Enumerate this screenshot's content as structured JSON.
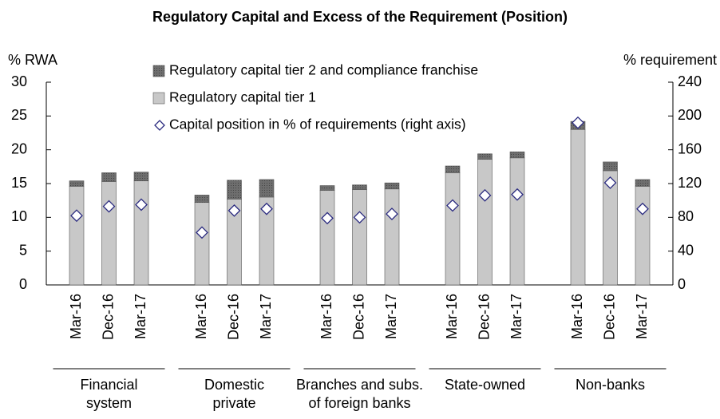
{
  "chart_data": {
    "type": "bar",
    "title": "Regulatory Capital and Excess of the Requirement (Position)",
    "y_label": "% RWA",
    "y2_label": "% requirement",
    "categories": [
      "Mar-16",
      "Dec-16",
      "Mar-17",
      "Mar-16",
      "Dec-16",
      "Mar-17",
      "Mar-16",
      "Dec-16",
      "Mar-17",
      "Mar-16",
      "Dec-16",
      "Mar-17",
      "Mar-16",
      "Dec-16",
      "Mar-17"
    ],
    "group_labels": [
      [
        "Financial",
        "system"
      ],
      [
        "Domestic",
        "private"
      ],
      [
        "Branches and subs.",
        "of foreign banks"
      ],
      [
        "State-owned"
      ],
      [
        "Non-banks"
      ]
    ],
    "series": [
      {
        "name": "Regulatory capital tier 1",
        "color": "#c8c8c8",
        "stack": true,
        "values": [
          14.6,
          15.3,
          15.4,
          12.2,
          12.7,
          13.0,
          14.0,
          14.1,
          14.2,
          16.6,
          18.6,
          18.8,
          23.0,
          16.9,
          14.6
        ]
      },
      {
        "name": "Regulatory capital tier 2 and compliance franchise",
        "color": "#6e6e6e",
        "stack": true,
        "values": [
          0.8,
          1.3,
          1.3,
          1.1,
          2.8,
          2.6,
          0.7,
          0.7,
          0.9,
          1.0,
          0.8,
          0.9,
          1.2,
          1.3,
          1.0
        ]
      },
      {
        "name": "Capital position in % of requirements (right axis)",
        "color": "#2b2b80",
        "axis": "y2",
        "marker": "diamond",
        "values": [
          82,
          93,
          95,
          62,
          88,
          90,
          79,
          80,
          84,
          94,
          106,
          107,
          192,
          121,
          90
        ]
      }
    ],
    "ylim": [
      0,
      30
    ],
    "yticks": [
      0,
      5,
      10,
      15,
      20,
      25,
      30
    ],
    "y2lim": [
      0,
      240
    ],
    "y2ticks": [
      0,
      40,
      80,
      120,
      160,
      200,
      240
    ]
  }
}
